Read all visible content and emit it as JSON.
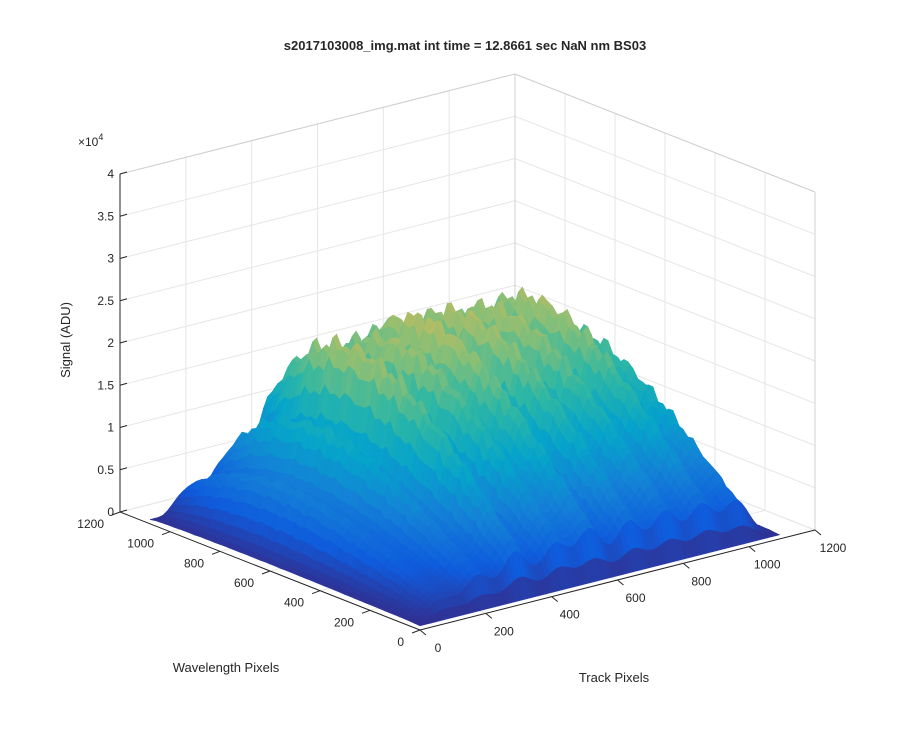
{
  "window": {
    "background": "#ffffff"
  },
  "chart_data": {
    "type": "surface",
    "title": "s2017103008_img.mat int time = 12.8661 sec  NaN nm BS03",
    "xlabel": "Track Pixels",
    "ylabel": "Wavelength Pixels",
    "zlabel": "Signal (ADU)",
    "z_multiplier_label": "×10",
    "z_multiplier_exponent": "4",
    "xlim": [
      0,
      1200
    ],
    "ylim": [
      0,
      1200
    ],
    "zlim": [
      0,
      40000
    ],
    "x_ticks": [
      "0",
      "200",
      "400",
      "600",
      "800",
      "1000",
      "1200"
    ],
    "y_ticks": [
      "0",
      "200",
      "400",
      "600",
      "800",
      "1000",
      "1200"
    ],
    "z_ticks": [
      "0",
      "0.5",
      "1",
      "1.5",
      "2",
      "2.5",
      "3",
      "3.5",
      "4"
    ],
    "grid": true,
    "colormap": "parula",
    "colors": {
      "parula": [
        "#352a87",
        "#0f5cdd",
        "#1481d6",
        "#06a4ca",
        "#2eb7a4",
        "#87bf77",
        "#d1bb59",
        "#fec832",
        "#f9fb0e"
      ],
      "axis": "#262626",
      "grid": "#e6e6e6"
    },
    "surface": {
      "x_extent": [
        0,
        1100
      ],
      "y_extent": [
        0,
        1080
      ],
      "baseline_signal": 500,
      "tracks": [
        {
          "track_center": 95,
          "peak_signal": 10500
        },
        {
          "track_center": 205,
          "peak_signal": 18500
        },
        {
          "track_center": 320,
          "peak_signal": 30000
        },
        {
          "track_center": 440,
          "peak_signal": 29000
        },
        {
          "track_center": 545,
          "peak_signal": 31000
        },
        {
          "track_center": 665,
          "peak_signal": 30500
        },
        {
          "track_center": 775,
          "peak_signal": 29500
        },
        {
          "track_center": 885,
          "peak_signal": 29500
        },
        {
          "track_center": 990,
          "peak_signal": 24000
        }
      ]
    }
  }
}
